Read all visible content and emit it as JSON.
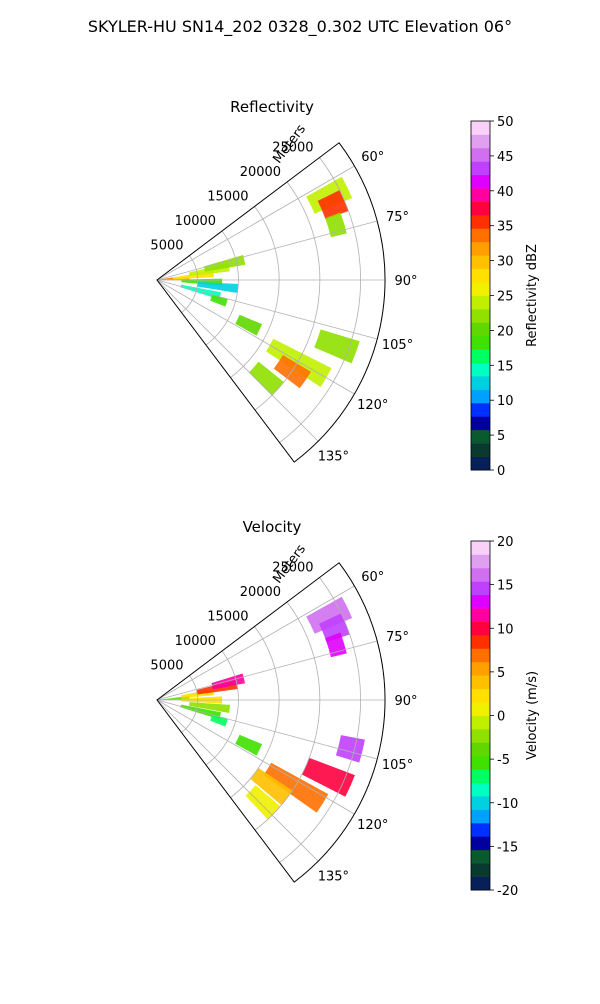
{
  "suptitle": "SKYLER-HU  SN14_202  0328_0.302 UTC Elevation 06°",
  "chart_data": [
    {
      "type": "heatmap",
      "projection": "polar-sector",
      "title": "Reflectivity",
      "radial_label": "Meters",
      "theta_range_deg": [
        53,
        143
      ],
      "radial_range_m": [
        0,
        28000
      ],
      "grid": true,
      "angle_ticks": [
        "60°",
        "75°",
        "90°",
        "105°",
        "120°",
        "135°"
      ],
      "radial_ticks": [
        "5000",
        "10000",
        "15000",
        "20000",
        "25000"
      ],
      "colorbar": {
        "label": "Reflectivity dBZ",
        "range": [
          0,
          50
        ],
        "ticks": [
          "0",
          "5",
          "10",
          "15",
          "20",
          "25",
          "30",
          "35",
          "40",
          "45",
          "50"
        ],
        "colors": [
          "#08205a",
          "#0a3a2f",
          "#0a5a30",
          "#0000a0",
          "#0030ff",
          "#00a0ff",
          "#00d0e0",
          "#00ffc0",
          "#00ff60",
          "#40e000",
          "#60d800",
          "#90e000",
          "#c0f000",
          "#f0f000",
          "#ffe000",
          "#ffc000",
          "#ffa000",
          "#ff7000",
          "#ff3000",
          "#ff0040",
          "#ff00a0",
          "#e000ff",
          "#c040ff",
          "#d070f0",
          "#e0a0f0",
          "#f8d0f8"
        ]
      },
      "echo_cells": [
        {
          "theta": 84,
          "r0": 0,
          "r1": 2000,
          "dbz": 34
        },
        {
          "theta": 88,
          "r0": 0,
          "r1": 4000,
          "dbz": 32
        },
        {
          "theta": 84,
          "r0": 2000,
          "r1": 7000,
          "dbz": 28
        },
        {
          "theta": 80,
          "r0": 4000,
          "r1": 9000,
          "dbz": 24
        },
        {
          "theta": 77,
          "r0": 6000,
          "r1": 11000,
          "dbz": 22
        },
        {
          "theta": 92,
          "r0": 3000,
          "r1": 8000,
          "dbz": 18
        },
        {
          "theta": 96,
          "r0": 5000,
          "r1": 10000,
          "dbz": 13
        },
        {
          "theta": 104,
          "r0": 3000,
          "r1": 8000,
          "dbz": 14
        },
        {
          "theta": 108,
          "r0": 7000,
          "r1": 9000,
          "dbz": 19
        },
        {
          "theta": 64,
          "r0": 21000,
          "r1": 26000,
          "dbz": 24
        },
        {
          "theta": 67,
          "r0": 22000,
          "r1": 25000,
          "dbz": 36
        },
        {
          "theta": 73,
          "r0": 22000,
          "r1": 24000,
          "dbz": 22
        },
        {
          "theta": 110,
          "r0": 21000,
          "r1": 26000,
          "dbz": 22
        },
        {
          "theta": 120,
          "r0": 16000,
          "r1": 24000,
          "dbz": 24
        },
        {
          "theta": 124,
          "r0": 18000,
          "r1": 22000,
          "dbz": 33
        },
        {
          "theta": 116,
          "r0": 11000,
          "r1": 14000,
          "dbz": 21
        },
        {
          "theta": 132,
          "r0": 16000,
          "r1": 20000,
          "dbz": 22
        }
      ]
    },
    {
      "type": "heatmap",
      "projection": "polar-sector",
      "title": "Velocity",
      "radial_label": "Meters",
      "theta_range_deg": [
        53,
        143
      ],
      "radial_range_m": [
        0,
        28000
      ],
      "grid": true,
      "angle_ticks": [
        "60°",
        "75°",
        "90°",
        "105°",
        "120°",
        "135°"
      ],
      "radial_ticks": [
        "5000",
        "10000",
        "15000",
        "20000",
        "25000"
      ],
      "colorbar": {
        "label": "Velocity (m/s)",
        "range": [
          -20,
          20
        ],
        "ticks": [
          "-20",
          "-15",
          "-10",
          "-5",
          "0",
          "5",
          "10",
          "15",
          "20"
        ],
        "colors": [
          "#08205a",
          "#0a3a2f",
          "#0a5a30",
          "#0000a0",
          "#0030ff",
          "#00a0ff",
          "#00d0e0",
          "#00ffc0",
          "#00ff60",
          "#40e000",
          "#60d800",
          "#90e000",
          "#c0f000",
          "#f0f000",
          "#ffe000",
          "#ffc000",
          "#ffa000",
          "#ff7000",
          "#ff3000",
          "#ff0040",
          "#ff00a0",
          "#e000ff",
          "#c040ff",
          "#d070f0",
          "#e0a0f0",
          "#f8d0f8"
        ]
      },
      "echo_cells": [
        {
          "theta": 86,
          "r0": 0,
          "r1": 4000,
          "vel": -4
        },
        {
          "theta": 82,
          "r0": 3000,
          "r1": 7000,
          "vel": 3
        },
        {
          "theta": 79,
          "r0": 5000,
          "r1": 10000,
          "vel": 9
        },
        {
          "theta": 76,
          "r0": 7000,
          "r1": 11000,
          "vel": 11
        },
        {
          "theta": 90,
          "r0": 3000,
          "r1": 8000,
          "vel": 2
        },
        {
          "theta": 97,
          "r0": 4000,
          "r1": 9000,
          "vel": -3
        },
        {
          "theta": 104,
          "r0": 3000,
          "r1": 8000,
          "vel": -6
        },
        {
          "theta": 108,
          "r0": 7000,
          "r1": 9000,
          "vel": -7
        },
        {
          "theta": 64,
          "r0": 21000,
          "r1": 26000,
          "vel": 16
        },
        {
          "theta": 68,
          "r0": 22000,
          "r1": 25000,
          "vel": 14
        },
        {
          "theta": 73,
          "r0": 22000,
          "r1": 24000,
          "vel": 13
        },
        {
          "theta": 104,
          "r0": 23000,
          "r1": 26000,
          "vel": 15
        },
        {
          "theta": 114,
          "r0": 20000,
          "r1": 26000,
          "vel": 10
        },
        {
          "theta": 122,
          "r0": 16000,
          "r1": 24000,
          "vel": 7
        },
        {
          "theta": 127,
          "r0": 15000,
          "r1": 20000,
          "vel": 4
        },
        {
          "theta": 134,
          "r0": 16000,
          "r1": 20000,
          "vel": 1
        },
        {
          "theta": 116,
          "r0": 11000,
          "r1": 14000,
          "vel": -5
        }
      ]
    }
  ]
}
